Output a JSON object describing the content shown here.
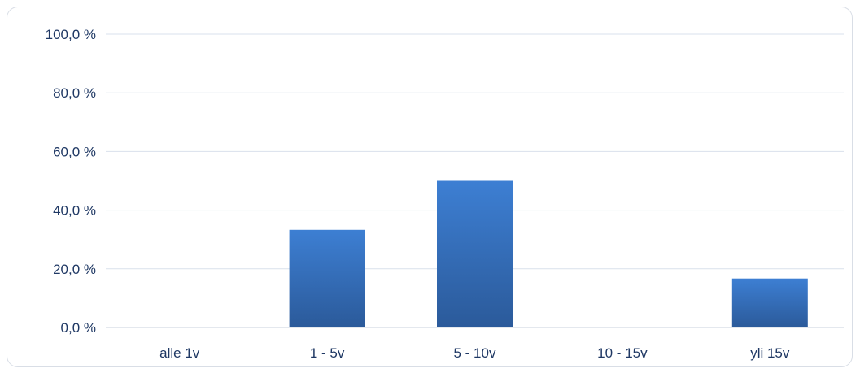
{
  "chart_data": {
    "type": "bar",
    "categories": [
      "alle 1v",
      "1 - 5v",
      "5 - 10v",
      "10 - 15v",
      "yli 15v"
    ],
    "values": [
      0,
      33.3,
      50.0,
      0,
      16.7
    ],
    "y_ticks": [
      "0,0 %",
      "20,0 %",
      "40,0 %",
      "60,0 %",
      "80,0 %",
      "100,0 %"
    ],
    "ylim": [
      0,
      100
    ],
    "title": "",
    "xlabel": "",
    "ylabel": "",
    "grid": true,
    "legend": "none",
    "colors": {
      "bar_top": "#3d7fd3",
      "bar_bottom": "#2b5a9a",
      "text": "#1f3864",
      "grid": "#d9e1ec"
    }
  }
}
